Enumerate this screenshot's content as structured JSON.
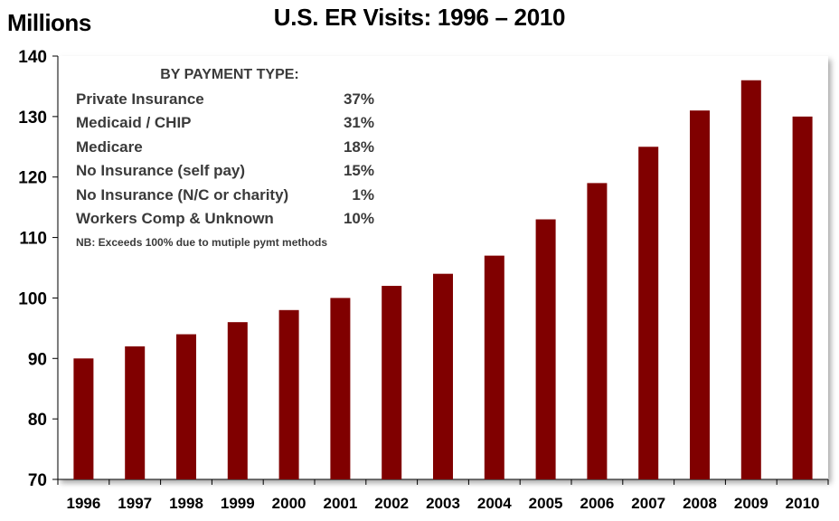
{
  "chart_data": {
    "type": "bar",
    "title": "U.S. ER Visits:  1996 – 2010",
    "ylabel": "Millions",
    "xlabel": "",
    "categories": [
      "1996",
      "1997",
      "1998",
      "1999",
      "2000",
      "2001",
      "2002",
      "2003",
      "2004",
      "2005",
      "2006",
      "2007",
      "2008",
      "2009",
      "2010"
    ],
    "values": [
      90,
      92,
      94,
      96,
      98,
      100,
      102,
      104,
      107,
      113,
      119,
      125,
      131,
      136,
      130
    ],
    "ylim": [
      70,
      140
    ],
    "yticks": [
      "70",
      "80",
      "90",
      "100",
      "110",
      "120",
      "130",
      "140"
    ],
    "grid": false,
    "bar_color": "#800000",
    "annotation": {
      "heading": "BY PAYMENT TYPE:",
      "rows": [
        {
          "label": "Private Insurance",
          "value": "37%"
        },
        {
          "label": "Medicaid / CHIP",
          "value": "31%"
        },
        {
          "label": "Medicare",
          "value": "18%"
        },
        {
          "label": "No Insurance (self pay)",
          "value": "15%"
        },
        {
          "label": "No Insurance (N/C or charity)",
          "value": "1%"
        },
        {
          "label": "Workers Comp & Unknown",
          "value": "10%"
        }
      ],
      "note": "NB: Exceeds 100% due to mutiple pymt methods"
    }
  }
}
